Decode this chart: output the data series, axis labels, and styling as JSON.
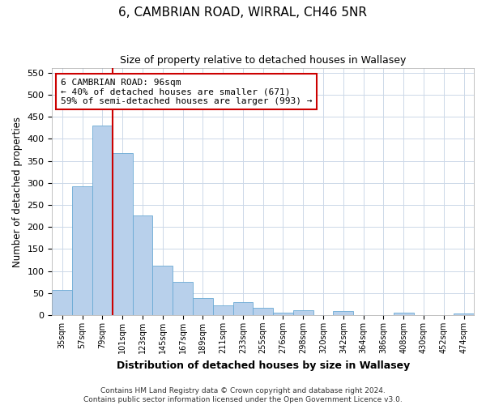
{
  "title": "6, CAMBRIAN ROAD, WIRRAL, CH46 5NR",
  "subtitle": "Size of property relative to detached houses in Wallasey",
  "xlabel": "Distribution of detached houses by size in Wallasey",
  "ylabel": "Number of detached properties",
  "bar_labels": [
    "35sqm",
    "57sqm",
    "79sqm",
    "101sqm",
    "123sqm",
    "145sqm",
    "167sqm",
    "189sqm",
    "211sqm",
    "233sqm",
    "255sqm",
    "276sqm",
    "298sqm",
    "320sqm",
    "342sqm",
    "364sqm",
    "386sqm",
    "408sqm",
    "430sqm",
    "452sqm",
    "474sqm"
  ],
  "bar_values": [
    57,
    293,
    430,
    368,
    226,
    113,
    76,
    38,
    22,
    29,
    17,
    5,
    11,
    0,
    9,
    0,
    0,
    5,
    0,
    0,
    4
  ],
  "bar_color": "#b8d0eb",
  "bar_edge_color": "#6aaad4",
  "vline_color": "#cc0000",
  "annotation_text": "6 CAMBRIAN ROAD: 96sqm\n← 40% of detached houses are smaller (671)\n59% of semi-detached houses are larger (993) →",
  "annotation_box_color": "#ffffff",
  "annotation_box_edge": "#cc0000",
  "ylim": [
    0,
    560
  ],
  "yticks": [
    0,
    50,
    100,
    150,
    200,
    250,
    300,
    350,
    400,
    450,
    500,
    550
  ],
  "footer_line1": "Contains HM Land Registry data © Crown copyright and database right 2024.",
  "footer_line2": "Contains public sector information licensed under the Open Government Licence v3.0.",
  "bg_color": "#ffffff",
  "grid_color": "#ccd8e8"
}
